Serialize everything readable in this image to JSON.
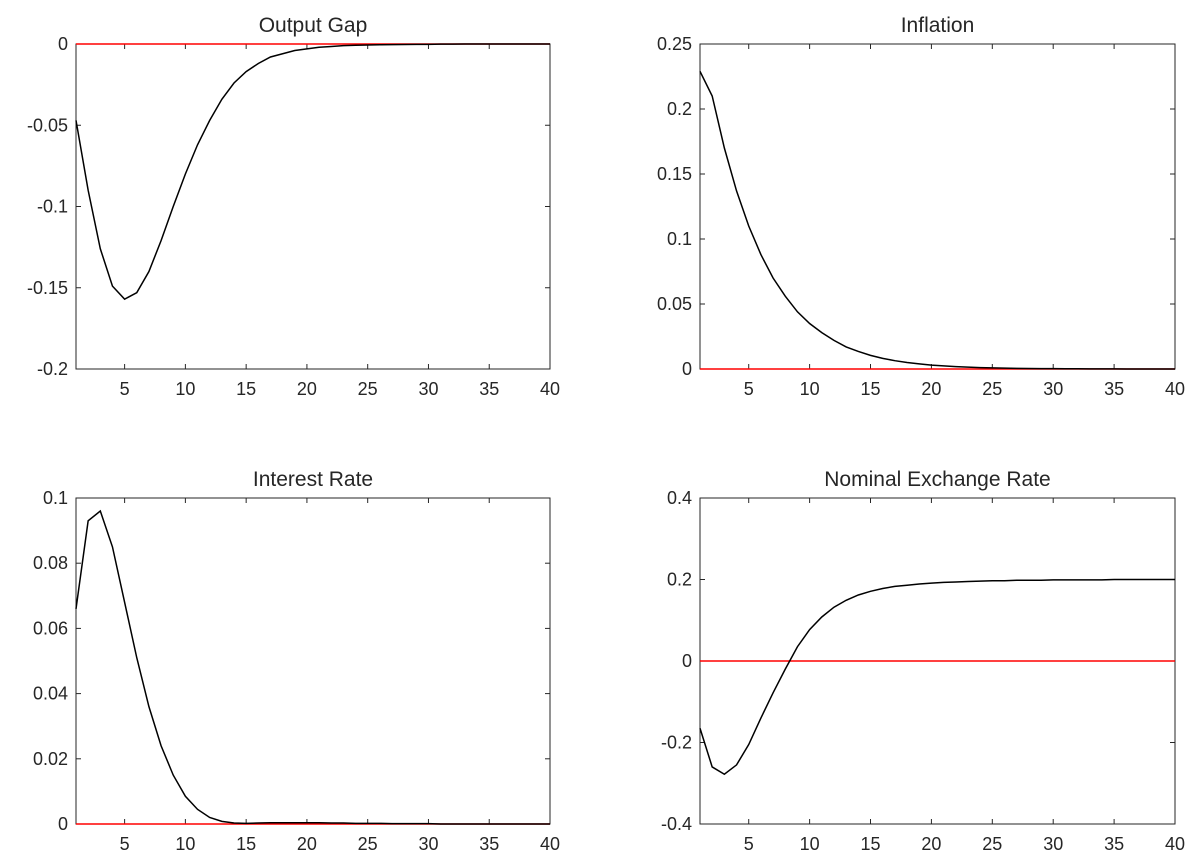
{
  "chart_data": [
    {
      "type": "line",
      "title": "Output Gap",
      "xlim": [
        1,
        40
      ],
      "ylim": [
        -0.2,
        0
      ],
      "xticks": [
        5,
        10,
        15,
        20,
        25,
        30,
        35,
        40
      ],
      "yticks": [
        -0.2,
        -0.15,
        -0.1,
        -0.05,
        0
      ],
      "ytick_labels": [
        "-0.2",
        "-0.15",
        "-0.1",
        "-0.05",
        "0"
      ],
      "reference_line": 0,
      "colors": {
        "series": "#000000",
        "reference": "#ff0000"
      },
      "x": [
        1,
        2,
        3,
        4,
        5,
        6,
        7,
        8,
        9,
        10,
        11,
        12,
        13,
        14,
        15,
        16,
        17,
        18,
        19,
        20,
        21,
        22,
        23,
        24,
        25,
        26,
        27,
        28,
        29,
        30,
        31,
        32,
        33,
        34,
        35,
        36,
        37,
        38,
        39,
        40
      ],
      "values": [
        -0.047,
        -0.09,
        -0.126,
        -0.149,
        -0.157,
        -0.153,
        -0.14,
        -0.121,
        -0.1,
        -0.08,
        -0.062,
        -0.047,
        -0.034,
        -0.024,
        -0.017,
        -0.012,
        -0.008,
        -0.006,
        -0.004,
        -0.003,
        -0.002,
        -0.0015,
        -0.001,
        -0.0008,
        -0.0006,
        -0.0005,
        -0.0004,
        -0.0003,
        -0.0002,
        -0.0002,
        -0.0001,
        -0.0001,
        0,
        0,
        0,
        0,
        0,
        0,
        0,
        0
      ]
    },
    {
      "type": "line",
      "title": "Inflation",
      "xlim": [
        1,
        40
      ],
      "ylim": [
        0,
        0.25
      ],
      "xticks": [
        5,
        10,
        15,
        20,
        25,
        30,
        35,
        40
      ],
      "yticks": [
        0,
        0.05,
        0.1,
        0.15,
        0.2,
        0.25
      ],
      "ytick_labels": [
        "0",
        "0.05",
        "0.1",
        "0.15",
        "0.2",
        "0.25"
      ],
      "reference_line": 0,
      "colors": {
        "series": "#000000",
        "reference": "#ff0000"
      },
      "x": [
        1,
        2,
        3,
        4,
        5,
        6,
        7,
        8,
        9,
        10,
        11,
        12,
        13,
        14,
        15,
        16,
        17,
        18,
        19,
        20,
        21,
        22,
        23,
        24,
        25,
        26,
        27,
        28,
        29,
        30,
        31,
        32,
        33,
        34,
        35,
        36,
        37,
        38,
        39,
        40
      ],
      "values": [
        0.229,
        0.21,
        0.17,
        0.137,
        0.11,
        0.088,
        0.07,
        0.056,
        0.044,
        0.035,
        0.028,
        0.022,
        0.017,
        0.0135,
        0.0105,
        0.0082,
        0.0064,
        0.005,
        0.0039,
        0.003,
        0.0024,
        0.0018,
        0.0014,
        0.0011,
        0.0009,
        0.0007,
        0.0005,
        0.0004,
        0.0003,
        0.00025,
        0.0002,
        0.00015,
        0.0001,
        0.0001,
        0.0001,
        0,
        0,
        0,
        0,
        0
      ]
    },
    {
      "type": "line",
      "title": "Interest Rate",
      "xlim": [
        1,
        40
      ],
      "ylim": [
        0,
        0.1
      ],
      "xticks": [
        5,
        10,
        15,
        20,
        25,
        30,
        35,
        40
      ],
      "yticks": [
        0,
        0.02,
        0.04,
        0.06,
        0.08,
        0.1
      ],
      "ytick_labels": [
        "0",
        "0.02",
        "0.04",
        "0.06",
        "0.08",
        "0.1"
      ],
      "reference_line": 0,
      "colors": {
        "series": "#000000",
        "reference": "#ff0000"
      },
      "x": [
        1,
        2,
        3,
        4,
        5,
        6,
        7,
        8,
        9,
        10,
        11,
        12,
        13,
        14,
        15,
        16,
        17,
        18,
        19,
        20,
        21,
        22,
        23,
        24,
        25,
        26,
        27,
        28,
        29,
        30,
        31,
        32,
        33,
        34,
        35,
        36,
        37,
        38,
        39,
        40
      ],
      "values": [
        0.066,
        0.093,
        0.096,
        0.085,
        0.068,
        0.051,
        0.036,
        0.024,
        0.015,
        0.0085,
        0.0045,
        0.002,
        0.0008,
        0.0003,
        0.0002,
        0.0003,
        0.0004,
        0.0004,
        0.0004,
        0.0004,
        0.0004,
        0.0003,
        0.0003,
        0.0002,
        0.0002,
        0.0002,
        0.0001,
        0.0001,
        0.0001,
        0.0001,
        0,
        0,
        0,
        0,
        0,
        0,
        0,
        0,
        0,
        0
      ]
    },
    {
      "type": "line",
      "title": "Nominal Exchange Rate",
      "xlim": [
        1,
        40
      ],
      "ylim": [
        -0.4,
        0.4
      ],
      "xticks": [
        5,
        10,
        15,
        20,
        25,
        30,
        35,
        40
      ],
      "yticks": [
        -0.4,
        -0.2,
        0,
        0.2,
        0.4
      ],
      "ytick_labels": [
        "-0.4",
        "-0.2",
        "0",
        "0.2",
        "0.4"
      ],
      "reference_line": 0,
      "colors": {
        "series": "#000000",
        "reference": "#ff0000"
      },
      "x": [
        1,
        2,
        3,
        4,
        5,
        6,
        7,
        8,
        9,
        10,
        11,
        12,
        13,
        14,
        15,
        16,
        17,
        18,
        19,
        20,
        21,
        22,
        23,
        24,
        25,
        26,
        27,
        28,
        29,
        30,
        31,
        32,
        33,
        34,
        35,
        36,
        37,
        38,
        39,
        40
      ],
      "values": [
        -0.165,
        -0.26,
        -0.278,
        -0.255,
        -0.205,
        -0.14,
        -0.078,
        -0.02,
        0.035,
        0.077,
        0.108,
        0.132,
        0.149,
        0.162,
        0.171,
        0.178,
        0.183,
        0.186,
        0.189,
        0.191,
        0.193,
        0.194,
        0.195,
        0.196,
        0.197,
        0.197,
        0.198,
        0.198,
        0.198,
        0.199,
        0.199,
        0.199,
        0.199,
        0.199,
        0.2,
        0.2,
        0.2,
        0.2,
        0.2,
        0.2
      ]
    }
  ]
}
